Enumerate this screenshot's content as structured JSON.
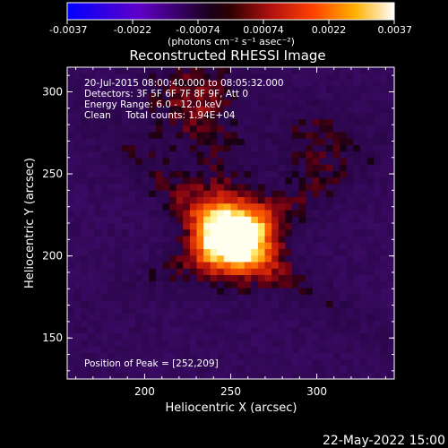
{
  "chart_data": {
    "type": "heatmap",
    "title": "Reconstructed RHESSI Image",
    "xlabel": "Heliocentric X (arcsec)",
    "ylabel": "Heliocentric Y (arcsec)",
    "xlim": [
      155,
      345
    ],
    "ylim": [
      125,
      315
    ],
    "x_ticks": [
      200,
      250,
      300
    ],
    "y_ticks": [
      150,
      200,
      250,
      300
    ],
    "colorbar": {
      "ticks": [
        "-0.0037",
        "-0.0022",
        "-0.00074",
        "0.00074",
        "0.0022",
        "0.0037"
      ],
      "units_label": "(photons cm⁻² s⁻¹ asec⁻²)",
      "colors": [
        "#0000ff",
        "#7a00c0",
        "#000000",
        "#a01010",
        "#ff3000",
        "#ff9000",
        "#ffe060",
        "#ffffff"
      ]
    },
    "annotations": [
      "20-Jul-2015 08:00:40.000 to 08:05:32.000",
      "Detectors: 3F 5F 6F 7F 8F 9F, Att 0",
      "Energy Range: 6.0 - 12.0 keV",
      "Clean     Total counts: 1.94E+04"
    ],
    "peak_label": "Position of Peak = [252,209]",
    "peak": {
      "x": 252,
      "y": 209
    },
    "footer_date": "22-May-2022 15:00"
  }
}
